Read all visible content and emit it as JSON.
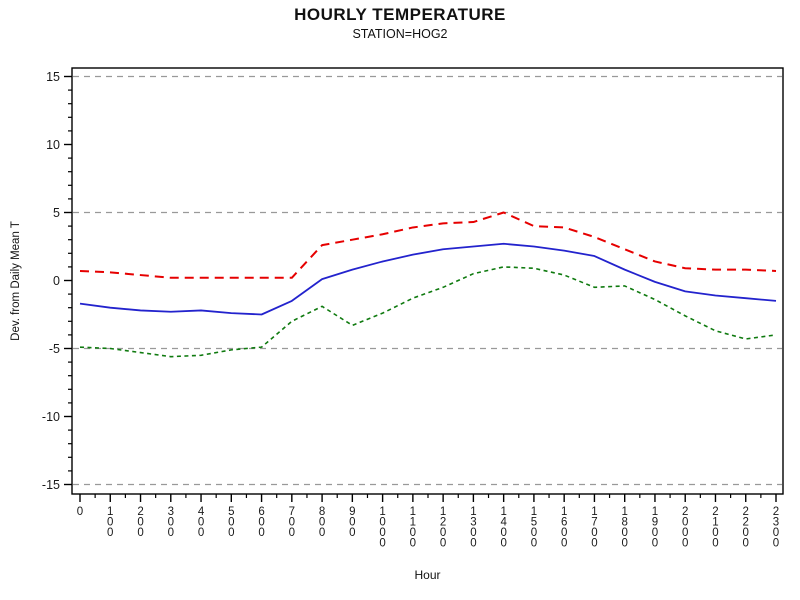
{
  "header": {
    "title": "HOURLY TEMPERATURE",
    "subtitle": "STATION=HOG2"
  },
  "chart_data": {
    "type": "line",
    "title": "HOURLY TEMPERATURE",
    "subtitle": "STATION=HOG2",
    "xlabel": "Hour",
    "ylabel": "Dev. from Daily Mean T",
    "x_values": [
      0,
      1,
      2,
      3,
      4,
      5,
      6,
      7,
      8,
      9,
      10,
      11,
      12,
      13,
      14,
      15,
      16,
      17,
      18,
      19,
      20,
      21,
      22,
      23
    ],
    "x_tick_labels": [
      "0",
      "100",
      "200",
      "300",
      "400",
      "500",
      "600",
      "700",
      "800",
      "900",
      "1000",
      "1100",
      "1200",
      "1300",
      "1400",
      "1500",
      "1600",
      "1700",
      "1800",
      "1900",
      "2000",
      "2100",
      "2200",
      "2300"
    ],
    "ylim": [
      -15.7,
      15.6
    ],
    "y_major_ticks": [
      -15,
      -10,
      -5,
      0,
      5,
      10,
      15
    ],
    "y_minor_step": 1,
    "gridlines_y": [
      -15,
      -5,
      5,
      15
    ],
    "grid_on": true,
    "legend": "none",
    "colors": {
      "grid": "#999999",
      "frame": "#000000",
      "text": "#1a1a1a"
    },
    "series": [
      {
        "name": "upper-red-dashed",
        "color": "#e60000",
        "dash": "9,6",
        "width": 2,
        "values": [
          0.7,
          0.6,
          0.4,
          0.2,
          0.2,
          0.2,
          0.2,
          0.2,
          2.6,
          3.0,
          3.4,
          3.9,
          4.2,
          4.3,
          5.0,
          4.0,
          3.9,
          3.2,
          2.3,
          1.4,
          0.9,
          0.8,
          0.8,
          0.7
        ]
      },
      {
        "name": "middle-blue-solid",
        "color": "#2323cd",
        "dash": "",
        "width": 1.8,
        "values": [
          -1.7,
          -2.0,
          -2.2,
          -2.3,
          -2.2,
          -2.4,
          -2.5,
          -1.5,
          0.1,
          0.8,
          1.4,
          1.9,
          2.3,
          2.5,
          2.7,
          2.5,
          2.2,
          1.8,
          0.8,
          -0.1,
          -0.8,
          -1.1,
          -1.3,
          -1.5
        ]
      },
      {
        "name": "lower-green-dashed",
        "color": "#0f7a0f",
        "dash": "4,3.5",
        "width": 1.6,
        "values": [
          -4.9,
          -5.0,
          -5.3,
          -5.6,
          -5.5,
          -5.1,
          -4.9,
          -3.0,
          -1.9,
          -3.3,
          -2.4,
          -1.3,
          -0.5,
          0.5,
          1.0,
          0.9,
          0.4,
          -0.5,
          -0.4,
          -1.4,
          -2.6,
          -3.7,
          -4.3,
          -4.0
        ]
      }
    ]
  }
}
